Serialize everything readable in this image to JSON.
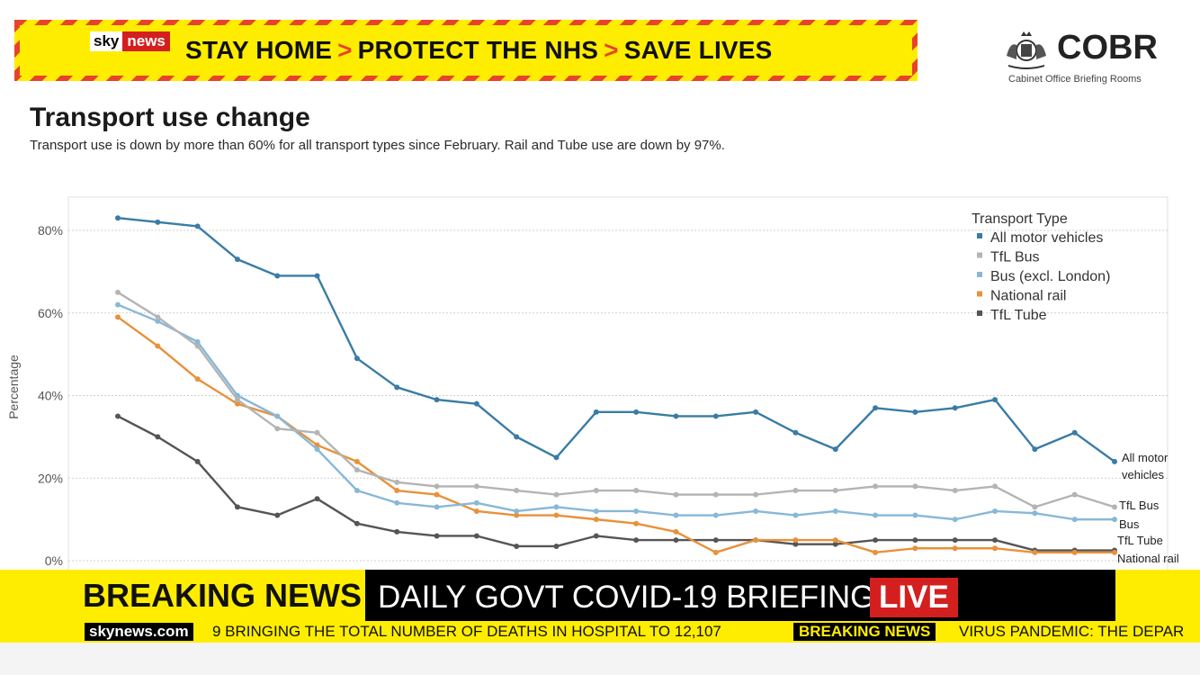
{
  "banner": {
    "sky": "sky",
    "news": "news",
    "part1": "STAY HOME",
    "sep": ">",
    "part2": "PROTECT THE NHS",
    "part3": "SAVE LIVES"
  },
  "logo": {
    "name": "COBR",
    "subtitle": "Cabinet Office Briefing Rooms",
    "icon": "royal-crest-icon"
  },
  "chart_data": {
    "type": "line",
    "title": "Transport use change",
    "subtitle": "Transport use is down by more than 60% for all transport types since February. Rail and Tube use are down by 97%.",
    "ylabel": "Percentage",
    "xlabel": "",
    "ylim": [
      0,
      85
    ],
    "yticks": [
      0,
      20,
      40,
      60,
      80
    ],
    "ytick_labels": [
      "0%",
      "20%",
      "40%",
      "60%",
      "80%"
    ],
    "grid": true,
    "legend_title": "Transport Type",
    "legend_position": "top-right",
    "series": [
      {
        "name": "All motor vehicles",
        "end_label": "All motor vehicles",
        "color": "#3a7ca5",
        "values": [
          83,
          82,
          81,
          73,
          69,
          69,
          49,
          42,
          39,
          38,
          30,
          25,
          36,
          36,
          35,
          35,
          36,
          31,
          27,
          37,
          36,
          37,
          39,
          27,
          31,
          24
        ]
      },
      {
        "name": "TfL Bus",
        "end_label": "TfL Bus",
        "color": "#b4b4b4",
        "values": [
          65,
          59,
          52,
          39,
          32,
          31,
          22,
          19,
          18,
          18,
          17,
          16,
          17,
          17,
          16,
          16,
          16,
          17,
          17,
          18,
          18,
          17,
          18,
          13,
          16,
          13
        ]
      },
      {
        "name": "Bus (excl. London)",
        "end_label": "Bus",
        "color": "#88b8d8",
        "values": [
          62,
          58,
          53,
          40,
          35,
          27,
          17,
          14,
          13,
          14,
          12,
          13,
          12,
          12,
          11,
          11,
          12,
          11,
          12,
          11,
          11,
          10,
          12,
          11.5,
          10,
          10
        ]
      },
      {
        "name": "National rail",
        "end_label": "National rail",
        "color": "#e8913a",
        "values": [
          59,
          52,
          44,
          38,
          35,
          28,
          24,
          17,
          16,
          12,
          11,
          11,
          10,
          9,
          7,
          2,
          5,
          5,
          5,
          2,
          3,
          3,
          3,
          2,
          2,
          2
        ]
      },
      {
        "name": "TfL Tube",
        "end_label": "TfL Tube",
        "color": "#555555",
        "values": [
          35,
          30,
          24,
          13,
          11,
          15,
          9,
          7,
          6,
          6,
          3.5,
          3.5,
          6,
          5,
          5,
          5,
          5,
          4,
          4,
          5,
          5,
          5,
          5,
          2.5,
          2.5,
          2.5
        ]
      }
    ]
  },
  "strap": {
    "breaking": "BREAKING NEWS",
    "headline": "DAILY GOVT COVID-19 BRIEFING",
    "live": "LIVE"
  },
  "ticker": {
    "site": "skynews.com",
    "text": "9 BRINGING THE TOTAL  NUMBER OF DEATHS IN HOSPITAL TO 12,107",
    "breaking": "BREAKING NEWS",
    "text2": "VIRUS PANDEMIC: THE DEPAR"
  }
}
